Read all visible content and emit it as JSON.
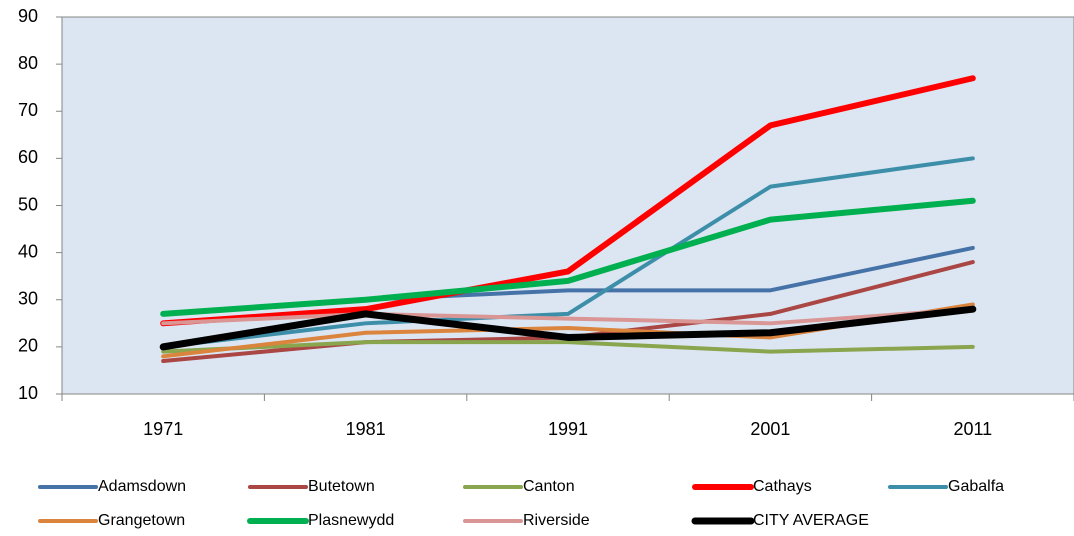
{
  "chart_data": {
    "type": "line",
    "categories": [
      "1971",
      "1981",
      "1991",
      "2001",
      "2011"
    ],
    "ylim": [
      10,
      90
    ],
    "yticks": [
      10,
      20,
      30,
      40,
      50,
      60,
      70,
      80,
      90
    ],
    "background": "#dce6f2",
    "legend": "bottom",
    "series": [
      {
        "name": "Adamsdown",
        "color": "#4572a7",
        "width": 4,
        "values": [
          27,
          30,
          32,
          32,
          41
        ]
      },
      {
        "name": "Butetown",
        "color": "#aa4643",
        "width": 4,
        "values": [
          17,
          21,
          22,
          27,
          38
        ]
      },
      {
        "name": "Canton",
        "color": "#89a54e",
        "width": 4,
        "values": [
          19,
          21,
          21,
          19,
          20
        ]
      },
      {
        "name": "Cathays",
        "color": "#ff0000",
        "width": 6,
        "values": [
          25,
          28,
          36,
          67,
          77
        ]
      },
      {
        "name": "Gabalfa",
        "color": "#3d8ea8",
        "width": 4,
        "values": [
          20,
          25,
          27,
          54,
          60
        ]
      },
      {
        "name": "Grangetown",
        "color": "#db843d",
        "width": 4,
        "values": [
          18,
          23,
          24,
          22,
          29
        ]
      },
      {
        "name": "Plasnewydd",
        "color": "#00b050",
        "width": 6,
        "values": [
          27,
          30,
          34,
          47,
          51
        ]
      },
      {
        "name": "Riverside",
        "color": "#d99694",
        "width": 4,
        "values": [
          25,
          27,
          26,
          25,
          28
        ]
      },
      {
        "name": "CITY AVERAGE",
        "color": "#000000",
        "width": 7,
        "values": [
          20,
          27,
          22,
          23,
          28
        ]
      }
    ]
  }
}
